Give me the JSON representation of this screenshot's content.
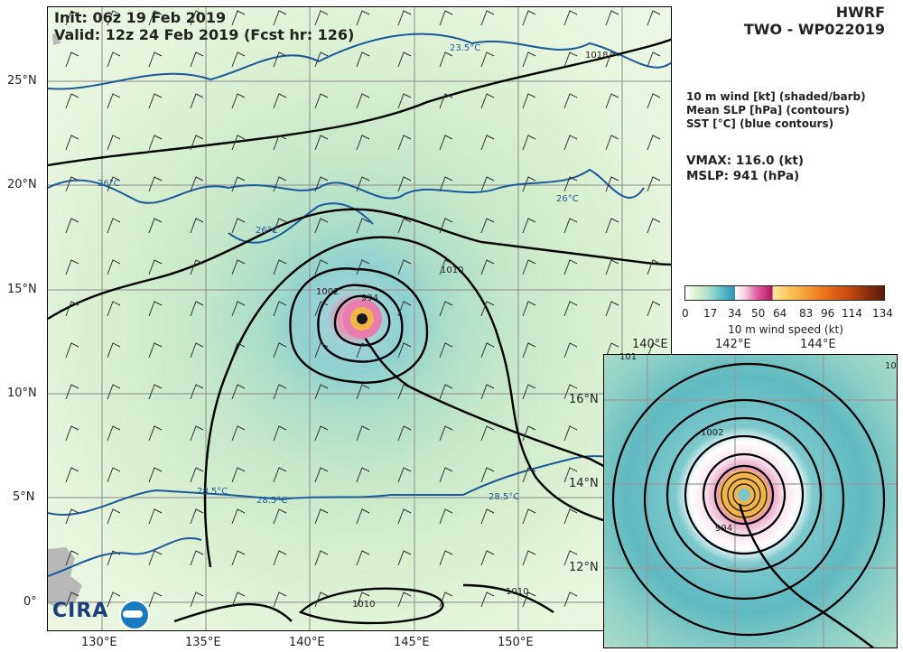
{
  "header": {
    "init": "Init:  06z 19 Feb 2019",
    "valid": "Valid: 12z 24 Feb 2019 (Fcst hr: 126)",
    "model": "HWRF",
    "storm": "TWO - WP022019"
  },
  "legend": {
    "line1": "10 m wind [kt] (shaded/barb)",
    "line2": "Mean SLP [hPa] (contours)",
    "line3": "SST [°C] (blue contours)"
  },
  "stats": {
    "vmax": "VMAX: 116.0 (kt)",
    "mslp": "MSLP:  941 (hPa)"
  },
  "colorbar": {
    "ticks": [
      "0",
      "17",
      "34",
      "50",
      "64",
      "83",
      "96",
      "114",
      "134"
    ],
    "label": "10 m wind speed (kt)"
  },
  "main_map": {
    "lat_labels": [
      "25°N",
      "20°N",
      "15°N",
      "10°N",
      "5°N",
      "0°"
    ],
    "lon_labels": [
      "130°E",
      "135°E",
      "140°E",
      "145°E",
      "150°E"
    ],
    "contour_labels": {
      "c1018": "1018",
      "c1010a": "1010",
      "c1010b": "1010",
      "c1010c": "1010",
      "c1002": "1002",
      "c994": "994",
      "sst235": "23.5°C",
      "sst26a": "26°C",
      "sst26b": "26°C",
      "sst26c": "26°C",
      "sst285a": "28.5°C",
      "sst285b": "28.5°C",
      "sst285c": "28.5°C"
    }
  },
  "inset_map": {
    "lon_labels": [
      "140°E",
      "142°E",
      "144°E"
    ],
    "lat_labels": [
      "16°N",
      "14°N",
      "12°N"
    ],
    "contour_labels": {
      "c1002": "1002",
      "c994": "994",
      "c101": "101",
      "c10": "10"
    }
  },
  "logo": {
    "text": "CIRA"
  }
}
